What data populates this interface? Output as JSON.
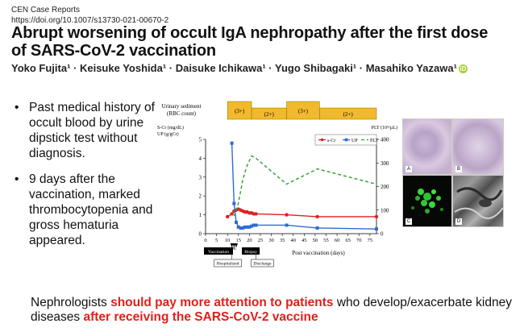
{
  "header": {
    "journal": "CEN Case Reports",
    "doi": "https://doi.org/10.1007/s13730-021-00670-2",
    "title_line1": "Abrupt worsening of occult IgA nephropathy after the first dose",
    "title_line2": "of SARS-CoV-2 vaccination",
    "authors": "Yoko Fujita¹ · Keisuke Yoshida¹ · Daisuke Ichikawa¹ · Yugo Shibagaki¹ · Masahiko Yazawa¹",
    "orcid_label": "iD"
  },
  "bullets": [
    "Past medical history of occult blood by urine dipstick test without diagnosis.",
    "9 days after the vaccination, marked thrombocytopenia and gross hematuria appeared."
  ],
  "bullet_symbol": "•",
  "conclusion": {
    "part1": "Nephrologists ",
    "part2": "should pay more attention to patients",
    "part3": " who develop/exacerbate kidney diseases ",
    "part4": "after receiving the SARS-CoV-2 vaccine"
  },
  "colors": {
    "highlight": "#e0201c",
    "sediment_bar": "#f2b92c",
    "scr": "#e02020",
    "up": "#2f6bd4",
    "plt": "#2e9e2e"
  },
  "chart_data": {
    "type": "line",
    "sediment_label": [
      "Urinary sediment",
      "(RBC count)"
    ],
    "sediment_segments": [
      {
        "start": 10,
        "end": 21,
        "label": "(3+)"
      },
      {
        "start": 21,
        "end": 37,
        "label": "(2+)"
      },
      {
        "start": 37,
        "end": 52,
        "label": "(3+)"
      },
      {
        "start": 52,
        "end": 78,
        "label": "(2+)"
      }
    ],
    "left_axis_label": [
      "S-Cr (mg/dL)",
      "UP (g/gCr)"
    ],
    "right_axis_label": "PLT (10⁴/µL)",
    "xlabel": "Post vaccination (days)",
    "xlim": [
      0,
      78
    ],
    "ylim_left": [
      0,
      5
    ],
    "ylim_right": [
      0,
      400
    ],
    "x_ticks": [
      "0",
      "5",
      "10",
      "15",
      "20",
      "25",
      "30",
      "35",
      "40",
      "45",
      "50",
      "55",
      "60",
      "65",
      "70",
      "75"
    ],
    "y_ticks_left": [
      "0",
      "1",
      "2",
      "3",
      "4",
      "5"
    ],
    "y_ticks_right": [
      "0",
      "100",
      "200",
      "300",
      "400"
    ],
    "legend": [
      "s-Cr",
      "UP",
      "PLT"
    ],
    "legend_position": "top-right",
    "series": [
      {
        "name": "s-Cr",
        "x": [
          10,
          12,
          13,
          14,
          15,
          16,
          17,
          18,
          19,
          20,
          21,
          22,
          23,
          37,
          51,
          78
        ],
        "y": [
          0.9,
          1.05,
          1.2,
          1.25,
          1.3,
          1.25,
          1.2,
          1.15,
          1.15,
          1.1,
          1.1,
          1.05,
          1.05,
          1.0,
          0.9,
          0.9
        ]
      },
      {
        "name": "UP",
        "x": [
          12,
          13,
          14,
          15,
          16,
          17,
          18,
          19,
          20,
          21,
          22,
          23,
          37,
          51,
          78
        ],
        "y": [
          4.8,
          1.6,
          0.6,
          0.35,
          0.3,
          0.3,
          0.35,
          0.35,
          0.35,
          0.4,
          0.45,
          0.45,
          0.45,
          0.3,
          0.25
        ]
      },
      {
        "name": "PLT",
        "x": [
          10,
          12,
          13,
          14,
          15,
          17,
          19,
          21,
          23,
          37,
          51,
          78
        ],
        "y": [
          null,
          null,
          75,
          100,
          130,
          230,
          290,
          330,
          320,
          210,
          275,
          210
        ]
      }
    ],
    "events": [
      "Vaccination",
      "PE",
      "Hospitalized",
      "Biopsy",
      "Discharge"
    ],
    "histology_panels": [
      "A",
      "B",
      "C",
      "D"
    ]
  }
}
